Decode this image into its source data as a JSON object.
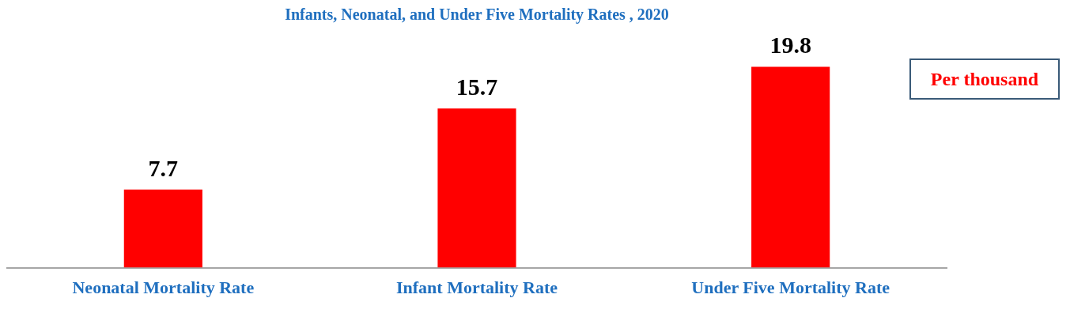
{
  "chart_data": {
    "type": "bar",
    "title": "Infants, Neonatal, and Under Five Mortality Rates , 2020",
    "categories": [
      "Neonatal Mortality Rate",
      "Infant Mortality Rate",
      "Under Five Mortality Rate"
    ],
    "values": [
      7.7,
      15.7,
      19.8
    ],
    "color": "#ff0000",
    "data_labels": true,
    "grid": false,
    "legend": false,
    "annotations": [
      "Per thousand"
    ]
  }
}
